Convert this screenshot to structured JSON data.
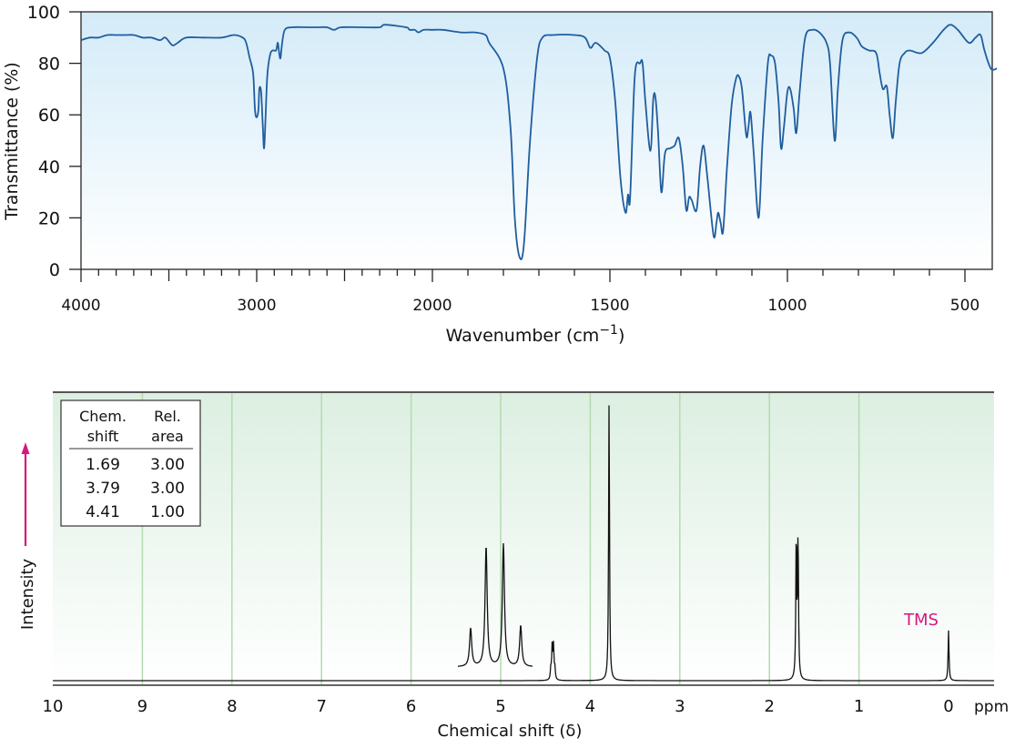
{
  "chart_data": [
    {
      "type": "line",
      "xlabel": "Wavenumber (cm",
      "xlabel_sup": "−1",
      "xlabel_end": ")",
      "ylabel": "Transmittance (%)",
      "xlim": [
        4000,
        400
      ],
      "ylim": [
        0,
        100
      ],
      "x_ticks": [
        4000,
        3000,
        2000,
        1500,
        1000,
        500
      ],
      "y_ticks": [
        0,
        20,
        40,
        60,
        80,
        100
      ],
      "grid": false,
      "colors": {
        "line": "#1f5e9e",
        "bg_top": "#d4ebf8",
        "bg_bottom": "#ffffff"
      },
      "points": [
        [
          4000,
          89
        ],
        [
          3950,
          90
        ],
        [
          3900,
          90
        ],
        [
          3850,
          91
        ],
        [
          3800,
          91
        ],
        [
          3750,
          91
        ],
        [
          3700,
          91
        ],
        [
          3650,
          90
        ],
        [
          3600,
          90
        ],
        [
          3550,
          89
        ],
        [
          3520,
          90
        ],
        [
          3480,
          87
        ],
        [
          3450,
          88
        ],
        [
          3400,
          90
        ],
        [
          3300,
          90
        ],
        [
          3200,
          90
        ],
        [
          3130,
          91
        ],
        [
          3080,
          90
        ],
        [
          3060,
          88
        ],
        [
          3040,
          82
        ],
        [
          3020,
          76
        ],
        [
          3010,
          62
        ],
        [
          3000,
          59
        ],
        [
          2990,
          62
        ],
        [
          2985,
          70
        ],
        [
          2975,
          69
        ],
        [
          2965,
          55
        ],
        [
          2958,
          47
        ],
        [
          2950,
          58
        ],
        [
          2940,
          75
        ],
        [
          2925,
          83
        ],
        [
          2910,
          85
        ],
        [
          2890,
          85
        ],
        [
          2880,
          88
        ],
        [
          2872,
          84
        ],
        [
          2865,
          82
        ],
        [
          2855,
          88
        ],
        [
          2840,
          93
        ],
        [
          2800,
          94
        ],
        [
          2700,
          94
        ],
        [
          2650,
          94
        ],
        [
          2600,
          94
        ],
        [
          2560,
          93
        ],
        [
          2520,
          94
        ],
        [
          2400,
          94
        ],
        [
          2300,
          94
        ],
        [
          2270,
          95
        ],
        [
          2150,
          94
        ],
        [
          2130,
          93
        ],
        [
          2100,
          93
        ],
        [
          2080,
          92
        ],
        [
          2050,
          93
        ],
        [
          2000,
          93
        ],
        [
          1970,
          93
        ],
        [
          1920,
          92
        ],
        [
          1880,
          92
        ],
        [
          1850,
          91
        ],
        [
          1840,
          88
        ],
        [
          1800,
          78
        ],
        [
          1780,
          55
        ],
        [
          1768,
          20
        ],
        [
          1755,
          5
        ],
        [
          1742,
          10
        ],
        [
          1725,
          50
        ],
        [
          1705,
          82
        ],
        [
          1690,
          90
        ],
        [
          1660,
          91
        ],
        [
          1600,
          91
        ],
        [
          1570,
          90
        ],
        [
          1555,
          86
        ],
        [
          1540,
          88
        ],
        [
          1515,
          85
        ],
        [
          1500,
          82
        ],
        [
          1485,
          65
        ],
        [
          1470,
          35
        ],
        [
          1456,
          22
        ],
        [
          1449,
          29
        ],
        [
          1443,
          28
        ],
        [
          1430,
          75
        ],
        [
          1415,
          80
        ],
        [
          1408,
          80
        ],
        [
          1400,
          65
        ],
        [
          1386,
          46
        ],
        [
          1378,
          66
        ],
        [
          1372,
          67
        ],
        [
          1365,
          55
        ],
        [
          1355,
          30
        ],
        [
          1345,
          45
        ],
        [
          1330,
          47
        ],
        [
          1318,
          48
        ],
        [
          1306,
          51
        ],
        [
          1295,
          40
        ],
        [
          1285,
          23
        ],
        [
          1277,
          28
        ],
        [
          1270,
          27
        ],
        [
          1256,
          23
        ],
        [
          1246,
          40
        ],
        [
          1236,
          48
        ],
        [
          1225,
          35
        ],
        [
          1208,
          13
        ],
        [
          1200,
          18
        ],
        [
          1195,
          22
        ],
        [
          1188,
          18
        ],
        [
          1181,
          15
        ],
        [
          1170,
          40
        ],
        [
          1157,
          64
        ],
        [
          1145,
          74
        ],
        [
          1137,
          75
        ],
        [
          1128,
          70
        ],
        [
          1116,
          52
        ],
        [
          1110,
          55
        ],
        [
          1104,
          61
        ],
        [
          1095,
          45
        ],
        [
          1081,
          20
        ],
        [
          1070,
          50
        ],
        [
          1055,
          80
        ],
        [
          1046,
          83
        ],
        [
          1035,
          80
        ],
        [
          1025,
          65
        ],
        [
          1018,
          47
        ],
        [
          1010,
          55
        ],
        [
          1000,
          69
        ],
        [
          992,
          70
        ],
        [
          982,
          62
        ],
        [
          975,
          53
        ],
        [
          965,
          70
        ],
        [
          950,
          90
        ],
        [
          930,
          93
        ],
        [
          910,
          92
        ],
        [
          890,
          88
        ],
        [
          880,
          80
        ],
        [
          867,
          50
        ],
        [
          858,
          70
        ],
        [
          845,
          89
        ],
        [
          826,
          92
        ],
        [
          805,
          90
        ],
        [
          793,
          87
        ],
        [
          785,
          86
        ],
        [
          770,
          85
        ],
        [
          750,
          84
        ],
        [
          740,
          76
        ],
        [
          731,
          70
        ],
        [
          720,
          71
        ],
        [
          712,
          60
        ],
        [
          703,
          51
        ],
        [
          695,
          65
        ],
        [
          684,
          80
        ],
        [
          670,
          84
        ],
        [
          655,
          85
        ],
        [
          622,
          84
        ],
        [
          590,
          88
        ],
        [
          560,
          93
        ],
        [
          541,
          95
        ],
        [
          520,
          93
        ],
        [
          489,
          88
        ],
        [
          470,
          90
        ],
        [
          456,
          91
        ],
        [
          445,
          85
        ],
        [
          427,
          78
        ],
        [
          410,
          78
        ]
      ]
    },
    {
      "type": "line",
      "xlabel": "Chemical shift (δ)",
      "x_unit": "ppm",
      "ylabel": "Intensity",
      "xlim": [
        10,
        -0.5
      ],
      "x_ticks": [
        10,
        9,
        8,
        7,
        6,
        5,
        4,
        3,
        2,
        1,
        0
      ],
      "grid": true,
      "colors": {
        "line": "#111111",
        "grid": "#b3dbb0",
        "bg_top": "#dcefe1",
        "bg_bottom": "#ffffff",
        "accent": "#d6177f"
      },
      "peaks": [
        {
          "shift": 4.44,
          "intensity": 0.04
        },
        {
          "shift": 4.425,
          "intensity": 0.12
        },
        {
          "shift": 4.41,
          "intensity": 0.12
        },
        {
          "shift": 4.395,
          "intensity": 0.04
        },
        {
          "shift": 3.79,
          "intensity": 1.0
        },
        {
          "shift": 1.7,
          "intensity": 0.52
        },
        {
          "shift": 1.68,
          "intensity": 0.51
        },
        {
          "shift": 0.0,
          "intensity": 0.18
        }
      ],
      "inset_expansion": {
        "of_shift": 4.41,
        "peak_intensities": [
          0.14,
          0.44,
          0.45,
          0.15
        ]
      },
      "annotation": "TMS",
      "table": {
        "headers": [
          [
            "Chem.",
            "shift"
          ],
          [
            "Rel.",
            "area"
          ]
        ],
        "rows": [
          [
            "1.69",
            "3.00"
          ],
          [
            "3.79",
            "3.00"
          ],
          [
            "4.41",
            "1.00"
          ]
        ]
      }
    }
  ]
}
